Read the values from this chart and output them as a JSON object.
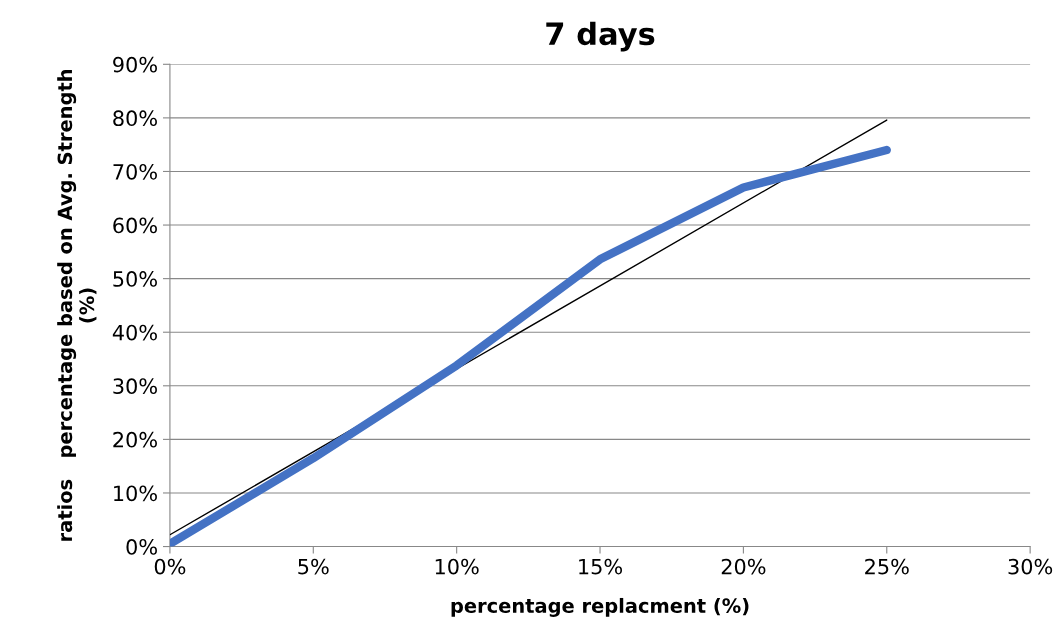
{
  "chart_data": {
    "type": "line",
    "title": "7 days",
    "xlabel": "percentage replacment (%)",
    "ylabel": "ratios   percentage based on Avg. Strength\n(%)",
    "x": [
      0,
      5,
      10,
      15,
      20,
      25
    ],
    "series": [
      {
        "color": "#4472c4",
        "values": [
          0.5,
          16.5,
          33.8,
          53.6,
          67,
          74
        ]
      },
      {
        "type": "line",
        "color": "#000000",
        "x": [
          0,
          25
        ],
        "values": [
          2.2,
          79.6
        ]
      }
    ],
    "xlim": [
      0,
      30
    ],
    "xticks": [
      {
        "value": 0,
        "label": "0%"
      },
      {
        "value": 5,
        "label": "5%"
      },
      {
        "value": 10,
        "label": "10%"
      },
      {
        "value": 15,
        "label": "15%"
      },
      {
        "value": 20,
        "label": "20%"
      },
      {
        "value": 25,
        "label": "25%"
      },
      {
        "value": 30,
        "label": "30%"
      }
    ],
    "ylim": [
      0,
      90
    ],
    "yticks": [
      {
        "value": 0,
        "label": "0%"
      },
      {
        "value": 10,
        "label": "10%"
      },
      {
        "value": 20,
        "label": "20%"
      },
      {
        "value": 30,
        "label": "30%"
      },
      {
        "value": 40,
        "label": "40%"
      },
      {
        "value": 50,
        "label": "50%"
      },
      {
        "value": 60,
        "label": "60%"
      },
      {
        "value": 70,
        "label": "70%"
      },
      {
        "value": 80,
        "label": "80%"
      },
      {
        "value": 90,
        "label": "90%"
      }
    ],
    "grid": "y",
    "legend": false,
    "marker": "none"
  }
}
